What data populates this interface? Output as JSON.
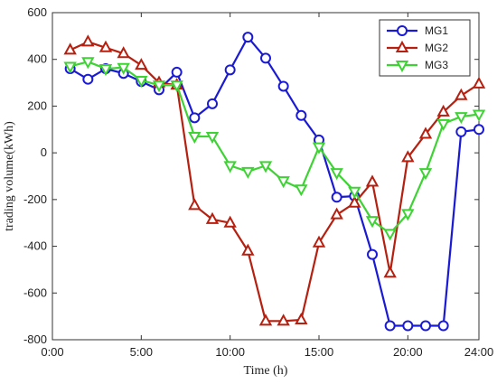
{
  "chart_data": {
    "type": "line",
    "xlabel": "Time (h)",
    "ylabel": "trading volume(kWh)",
    "xlim": [
      0,
      24
    ],
    "ylim": [
      -800,
      600
    ],
    "x_ticks": [
      {
        "value": 0,
        "label": "0:00"
      },
      {
        "value": 5,
        "label": "5:00"
      },
      {
        "value": 10,
        "label": "10:00"
      },
      {
        "value": 15,
        "label": "15:00"
      },
      {
        "value": 20,
        "label": "20:00"
      },
      {
        "value": 24,
        "label": "24:00"
      }
    ],
    "y_ticks": [
      -800,
      -600,
      -400,
      -200,
      0,
      200,
      400,
      600
    ],
    "legend_position": "top-right",
    "x": [
      1,
      2,
      3,
      4,
      5,
      6,
      7,
      8,
      9,
      10,
      11,
      12,
      13,
      14,
      15,
      16,
      17,
      18,
      19,
      20,
      21,
      22,
      23,
      24
    ],
    "series": [
      {
        "name": "MG1",
        "color": "#1a1ad4",
        "marker": "circle",
        "values": [
          360,
          315,
          360,
          340,
          305,
          270,
          345,
          150,
          210,
          355,
          495,
          405,
          285,
          160,
          55,
          -190,
          -185,
          -435,
          -740,
          -740,
          -740,
          -740,
          90,
          100
        ]
      },
      {
        "name": "MG2",
        "color": "#b52010",
        "marker": "triangle-up",
        "values": [
          440,
          475,
          450,
          425,
          375,
          300,
          290,
          -225,
          -285,
          -300,
          -420,
          -720,
          -720,
          -715,
          -385,
          -265,
          -215,
          -125,
          -515,
          -20,
          80,
          175,
          245,
          295
        ]
      },
      {
        "name": "MG3",
        "color": "#3fd235",
        "marker": "triangle-down",
        "values": [
          370,
          390,
          360,
          365,
          310,
          290,
          290,
          70,
          70,
          -55,
          -80,
          -55,
          -120,
          -155,
          25,
          -85,
          -165,
          -290,
          -345,
          -260,
          -85,
          125,
          155,
          165
        ]
      }
    ]
  }
}
